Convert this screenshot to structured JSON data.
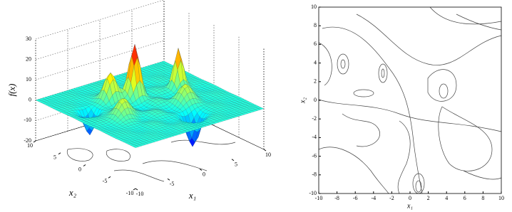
{
  "chart_data": [
    {
      "type": "surface",
      "zlabel": "f(x)",
      "xlabel": "x₁",
      "ylabel": "x₂",
      "xlim": [
        -10,
        10
      ],
      "ylim": [
        -10,
        10
      ],
      "zlim": [
        -20,
        30
      ],
      "xticks": [
        -10,
        -5,
        0,
        5,
        10
      ],
      "yticks": [
        -10,
        -5,
        0,
        5,
        10
      ],
      "zticks": [
        -20,
        -10,
        0,
        10,
        20,
        30
      ]
    },
    {
      "type": "contour",
      "xlabel": "x₁",
      "ylabel": "x₂",
      "xlim": [
        -10,
        10
      ],
      "ylim": [
        -10,
        10
      ],
      "xticks": [
        -10,
        -8,
        -6,
        -4,
        -2,
        0,
        2,
        4,
        6,
        8,
        10
      ],
      "yticks": [
        -10,
        -8,
        -6,
        -4,
        -2,
        0,
        2,
        4,
        6,
        8,
        10
      ]
    }
  ]
}
